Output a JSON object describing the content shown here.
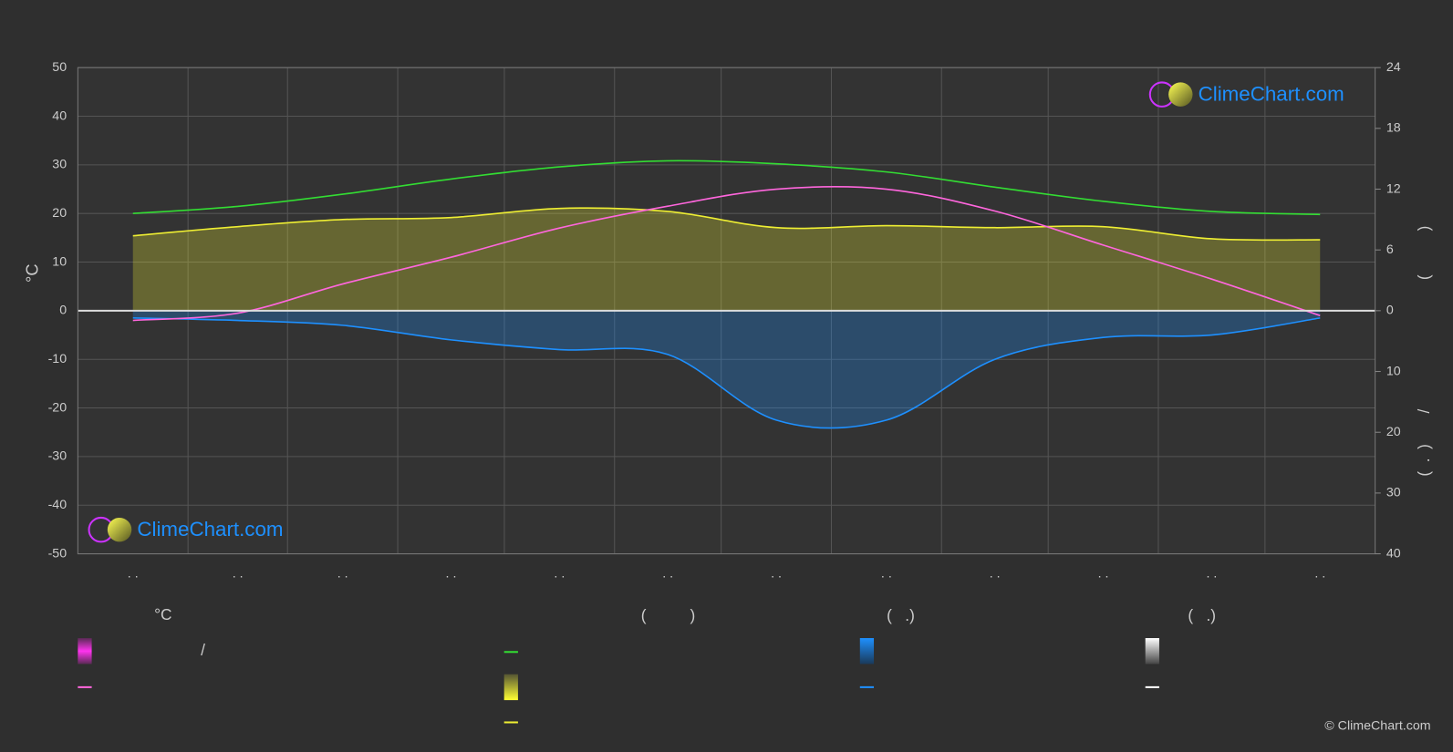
{
  "logo_top": "ClimeChart.com",
  "logo_bottom": "ClimeChart.com",
  "copyright": "© ClimeChart.com",
  "legend": {
    "headings": [
      "°C",
      "(          )",
      "(   .)",
      "(   .)"
    ],
    "separator": "/"
  },
  "chart_data": {
    "type": "line",
    "y_label": "°C",
    "y2_label": "(          )",
    "y3_label": "(  .  )       /",
    "categories": [
      ". .",
      ". .",
      ". .",
      ". .",
      ". .",
      ". .",
      ". .",
      ". .",
      ". .",
      ". .",
      ". .",
      ". ."
    ],
    "ylim": [
      -50,
      50
    ],
    "yticks": [
      -50,
      -40,
      -30,
      -20,
      -10,
      0,
      10,
      20,
      30,
      40,
      50
    ],
    "y2lim": [
      0,
      24
    ],
    "y2ticks": [
      0,
      6,
      12,
      18,
      24
    ],
    "y3lim": [
      0,
      40
    ],
    "y3ticks": [
      10,
      20,
      30,
      40
    ],
    "grid": true,
    "series": [
      {
        "color": "#ff66dd",
        "axis": "y",
        "values": [
          -2,
          -0.5,
          5.5,
          11,
          17,
          21.5,
          25,
          25,
          20.5,
          13.5,
          6.5,
          -1
        ]
      },
      {
        "color": "#33dd33",
        "axis": "y2",
        "values": [
          9.6,
          10.3,
          11.5,
          13,
          14.2,
          14.8,
          14.5,
          13.7,
          12.2,
          10.8,
          9.8,
          9.5
        ]
      },
      {
        "color": "#eeee33",
        "axis": "y2",
        "fill": true,
        "values": [
          7.4,
          8.3,
          9,
          9.2,
          10.1,
          9.8,
          8.2,
          8.4,
          8.2,
          8.3,
          7.1,
          7
        ]
      },
      {
        "color": "#1e90ff",
        "axis": "y3",
        "fill": true,
        "values": [
          1.2,
          1.6,
          2.4,
          4.8,
          6.4,
          7.2,
          18,
          18,
          8,
          4.4,
          4,
          1.2
        ]
      }
    ]
  }
}
